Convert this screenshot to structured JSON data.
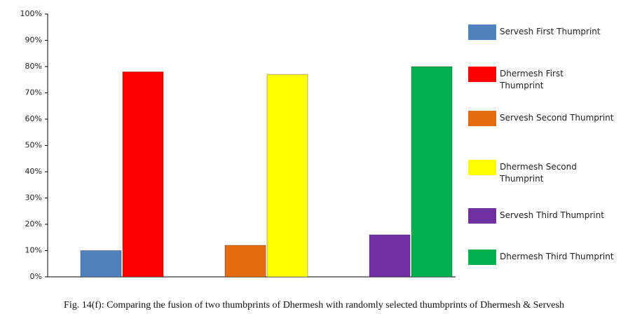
{
  "chart_data": {
    "type": "bar",
    "caption": "Fig. 14(f): Comparing the fusion of two thumbprints of Dhermesh with randomly selected thumbprints of Dhermesh & Servesh",
    "categories": [
      null,
      null,
      null
    ],
    "series": [
      {
        "name": "Servesh First Thumprint",
        "color": "#4f81bd",
        "values": [
          10,
          null,
          null
        ]
      },
      {
        "name": "Dhermesh First Thumprint",
        "color": "#ff0000",
        "values": [
          78,
          null,
          null
        ]
      },
      {
        "name": "Servesh Second Thumprint",
        "color": "#e46c0a",
        "values": [
          null,
          12,
          null
        ]
      },
      {
        "name": "Dhermesh Second Thumprint",
        "color": "#ffff00",
        "values": [
          null,
          77,
          null
        ]
      },
      {
        "name": "Servesh Third Thumprint",
        "color": "#7030a0",
        "values": [
          null,
          null,
          16
        ]
      },
      {
        "name": "Dhermesh Third Thumprint",
        "color": "#00b050",
        "values": [
          null,
          null,
          80
        ]
      }
    ],
    "ylim": [
      0,
      100
    ],
    "yticks": [
      {
        "value": 0,
        "label": "0%"
      },
      {
        "value": 10,
        "label": "10%"
      },
      {
        "value": 20,
        "label": "20%"
      },
      {
        "value": 30,
        "label": "30%"
      },
      {
        "value": 40,
        "label": "40%"
      },
      {
        "value": 50,
        "label": "50%"
      },
      {
        "value": 60,
        "label": "60%"
      },
      {
        "value": 70,
        "label": "70%"
      },
      {
        "value": 80,
        "label": "80%"
      },
      {
        "value": 90,
        "label": "90%"
      },
      {
        "value": 100,
        "label": "100%"
      }
    ],
    "grid": false,
    "legend": "right"
  }
}
